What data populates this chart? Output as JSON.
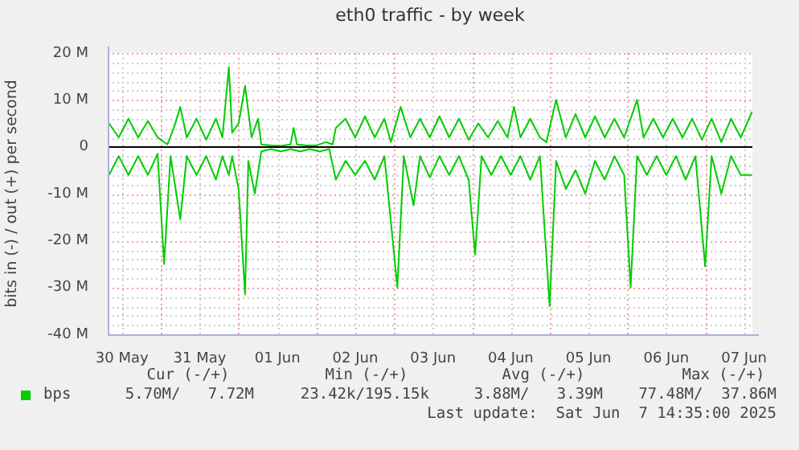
{
  "chart_data": {
    "type": "line",
    "title": "eth0 traffic - by week",
    "ylabel": "bits in (-) / out (+) per second",
    "xlim": [
      "2025-05-30T07:36",
      "2025-06-07T14:35"
    ],
    "xticks": [
      {
        "value": "2025-05-30T12:00",
        "label": "30 May"
      },
      {
        "value": "2025-05-31T00:00",
        "label": null
      },
      {
        "value": "2025-05-31T12:00",
        "label": "31 May"
      },
      {
        "value": "2025-06-01T00:00",
        "label": null
      },
      {
        "value": "2025-06-01T12:00",
        "label": "01 Jun"
      },
      {
        "value": "2025-06-02T00:00",
        "label": null
      },
      {
        "value": "2025-06-02T12:00",
        "label": "02 Jun"
      },
      {
        "value": "2025-06-03T00:00",
        "label": null
      },
      {
        "value": "2025-06-03T12:00",
        "label": "03 Jun"
      },
      {
        "value": "2025-06-04T00:00",
        "label": null
      },
      {
        "value": "2025-06-04T12:00",
        "label": "04 Jun"
      },
      {
        "value": "2025-06-05T00:00",
        "label": null
      },
      {
        "value": "2025-06-05T12:00",
        "label": "05 Jun"
      },
      {
        "value": "2025-06-06T00:00",
        "label": null
      },
      {
        "value": "2025-06-06T12:00",
        "label": "06 Jun"
      },
      {
        "value": "2025-06-07T00:00",
        "label": null
      },
      {
        "value": "2025-06-07T12:00",
        "label": "07 Jun"
      }
    ],
    "ylim": [
      -40,
      20
    ],
    "yticks": [
      {
        "value": -40,
        "label": "-40 M"
      },
      {
        "value": -38,
        "label": null
      },
      {
        "value": -36,
        "label": null
      },
      {
        "value": -34,
        "label": null
      },
      {
        "value": -32,
        "label": null
      },
      {
        "value": -30,
        "label": "-30 M"
      },
      {
        "value": -28,
        "label": null
      },
      {
        "value": -26,
        "label": null
      },
      {
        "value": -24,
        "label": null
      },
      {
        "value": -22,
        "label": null
      },
      {
        "value": -20,
        "label": "-20 M"
      },
      {
        "value": -18,
        "label": null
      },
      {
        "value": -16,
        "label": null
      },
      {
        "value": -14,
        "label": null
      },
      {
        "value": -12,
        "label": null
      },
      {
        "value": -10,
        "label": "-10 M"
      },
      {
        "value": -8,
        "label": null
      },
      {
        "value": -6,
        "label": null
      },
      {
        "value": -4,
        "label": null
      },
      {
        "value": -2,
        "label": null
      },
      0,
      {
        "value": 2,
        "label": null
      },
      {
        "value": 4,
        "label": null
      },
      {
        "value": 6,
        "label": null
      },
      {
        "value": 8,
        "label": null
      },
      {
        "value": 10,
        "label": "10 M"
      },
      {
        "value": 12,
        "label": null
      },
      {
        "value": 14,
        "label": null
      },
      {
        "value": 16,
        "label": null
      },
      {
        "value": 18,
        "label": null
      },
      {
        "value": 20,
        "label": "20 M"
      }
    ],
    "grid": true,
    "legend": "bottom left",
    "ref_lines": [
      {
        "axis": "y",
        "value": 0,
        "color": "#000000"
      }
    ],
    "annotations": [
      "Cur (-/+)",
      "Min (-/+)",
      "Avg (-/+)",
      "Max (-/+)",
      "5.70M/   7.72M",
      "23.42k/195.15k",
      "3.88M/   3.39M",
      "77.48M/  37.86M",
      "Last update:  Sat Jun  7 14:35:00 2025"
    ],
    "series": [
      {
        "name": "bps",
        "color": "#00cc00",
        "x": [
          "2025-05-30T08:00",
          "2025-05-30T11:00",
          "2025-05-30T14:00",
          "2025-05-30T17:00",
          "2025-05-30T20:00",
          "2025-05-30T23:00",
          "2025-05-31T02:00",
          "2025-05-31T04:00",
          "2025-05-31T06:00",
          "2025-05-31T08:00",
          "2025-05-31T11:00",
          "2025-05-31T14:00",
          "2025-05-31T17:00",
          "2025-05-31T19:00",
          "2025-05-31T21:00",
          "2025-05-31T22:00",
          "2025-06-01T00:00",
          "2025-06-01T02:00",
          "2025-06-01T04:00",
          "2025-06-01T06:00",
          "2025-06-01T07:00",
          "2025-06-01T10:00",
          "2025-06-01T13:00",
          "2025-06-01T16:00",
          "2025-06-01T17:00",
          "2025-06-01T18:00",
          "2025-06-01T21:00",
          "2025-06-02T00:00",
          "2025-06-02T03:00",
          "2025-06-02T05:00",
          "2025-06-02T06:00",
          "2025-06-02T09:00",
          "2025-06-02T12:00",
          "2025-06-02T15:00",
          "2025-06-02T18:00",
          "2025-06-02T21:00",
          "2025-06-02T23:00",
          "2025-06-03T02:00",
          "2025-06-03T05:00",
          "2025-06-03T08:00",
          "2025-06-03T11:00",
          "2025-06-03T14:00",
          "2025-06-03T17:00",
          "2025-06-03T20:00",
          "2025-06-03T23:00",
          "2025-06-04T02:00",
          "2025-06-04T05:00",
          "2025-06-04T08:00",
          "2025-06-04T11:00",
          "2025-06-04T13:00",
          "2025-06-04T15:00",
          "2025-06-04T18:00",
          "2025-06-04T21:00",
          "2025-06-04T23:00",
          "2025-06-05T02:00",
          "2025-06-05T05:00",
          "2025-06-05T08:00",
          "2025-06-05T11:00",
          "2025-06-05T14:00",
          "2025-06-05T17:00",
          "2025-06-05T20:00",
          "2025-06-05T23:00",
          "2025-06-06T03:00",
          "2025-06-06T05:00",
          "2025-06-06T08:00",
          "2025-06-06T11:00",
          "2025-06-06T14:00",
          "2025-06-06T17:00",
          "2025-06-06T20:00",
          "2025-06-06T23:00",
          "2025-06-07T02:00",
          "2025-06-07T05:00",
          "2025-06-07T08:00",
          "2025-06-07T11:00",
          "2025-06-07T14:30"
        ],
        "values": [
          5,
          2,
          6,
          2,
          5.5,
          2,
          0.5,
          4,
          8.5,
          2,
          6,
          1.5,
          6,
          2,
          17,
          3,
          5,
          13,
          2,
          6,
          0.5,
          0.3,
          0.2,
          0.5,
          4,
          0.5,
          0.3,
          0.3,
          1,
          0.5,
          4,
          6,
          2,
          6.5,
          2,
          6,
          1,
          8.5,
          2,
          6,
          2,
          6.5,
          2,
          6,
          1.5,
          5,
          2,
          5.5,
          2,
          8.5,
          2,
          6,
          2,
          1,
          10,
          2,
          7,
          2,
          6.5,
          2,
          6,
          2,
          10,
          2,
          6,
          2,
          6,
          2,
          6,
          1.5,
          6,
          1,
          6,
          2,
          7.5
        ]
      },
      {
        "color": "#00cc00",
        "x": [
          "2025-05-30T08:00",
          "2025-05-30T11:00",
          "2025-05-30T14:00",
          "2025-05-30T17:00",
          "2025-05-30T20:00",
          "2025-05-30T23:00",
          "2025-05-31T01:00",
          "2025-05-31T03:00",
          "2025-05-31T06:00",
          "2025-05-31T08:00",
          "2025-05-31T11:00",
          "2025-05-31T14:00",
          "2025-05-31T17:00",
          "2025-05-31T19:00",
          "2025-05-31T21:00",
          "2025-05-31T22:00",
          "2025-06-01T00:00",
          "2025-06-01T02:00",
          "2025-06-01T03:00",
          "2025-06-01T05:00",
          "2025-06-01T07:00",
          "2025-06-01T10:00",
          "2025-06-01T13:00",
          "2025-06-01T16:00",
          "2025-06-01T19:00",
          "2025-06-01T22:00",
          "2025-06-02T01:00",
          "2025-06-02T04:00",
          "2025-06-02T06:00",
          "2025-06-02T09:00",
          "2025-06-02T12:00",
          "2025-06-02T15:00",
          "2025-06-02T18:00",
          "2025-06-02T21:00",
          "2025-06-03T01:00",
          "2025-06-03T03:00",
          "2025-06-03T06:00",
          "2025-06-03T08:00",
          "2025-06-03T11:00",
          "2025-06-03T14:00",
          "2025-06-03T17:00",
          "2025-06-03T20:00",
          "2025-06-03T23:00",
          "2025-06-04T01:00",
          "2025-06-04T03:00",
          "2025-06-04T06:00",
          "2025-06-04T09:00",
          "2025-06-04T12:00",
          "2025-06-04T15:00",
          "2025-06-04T18:00",
          "2025-06-04T21:00",
          "2025-06-05T00:00",
          "2025-06-05T02:00",
          "2025-06-05T05:00",
          "2025-06-05T08:00",
          "2025-06-05T11:00",
          "2025-06-05T14:00",
          "2025-06-05T17:00",
          "2025-06-05T20:00",
          "2025-06-05T23:00",
          "2025-06-06T01:00",
          "2025-06-06T03:00",
          "2025-06-06T06:00",
          "2025-06-06T09:00",
          "2025-06-06T12:00",
          "2025-06-06T15:00",
          "2025-06-06T18:00",
          "2025-06-06T21:00",
          "2025-06-07T00:00",
          "2025-06-07T02:00",
          "2025-06-07T05:00",
          "2025-06-07T08:00",
          "2025-06-07T11:00",
          "2025-06-07T14:30"
        ],
        "values": [
          -6,
          -2,
          -6,
          -2,
          -6,
          -1.5,
          -25,
          -2,
          -15.5,
          -2,
          -6,
          -2,
          -7,
          -2,
          -6,
          -2,
          -9,
          -31.5,
          -3,
          -10,
          -1,
          -0.5,
          -1,
          -0.5,
          -1,
          -0.5,
          -1,
          -0.5,
          -7,
          -3,
          -6,
          -3,
          -7,
          -2,
          -30,
          -2,
          -12.5,
          -2,
          -6.5,
          -2,
          -6,
          -2,
          -7,
          -23,
          -2,
          -6,
          -2,
          -6,
          -2,
          -7,
          -2,
          -34,
          -3,
          -9,
          -5,
          -10,
          -3,
          -7,
          -2,
          -6,
          -30,
          -2,
          -6,
          -2,
          -6,
          -2,
          -7,
          -2,
          -25.5,
          -2,
          -10,
          -2,
          -6,
          -6
        ]
      }
    ]
  }
}
